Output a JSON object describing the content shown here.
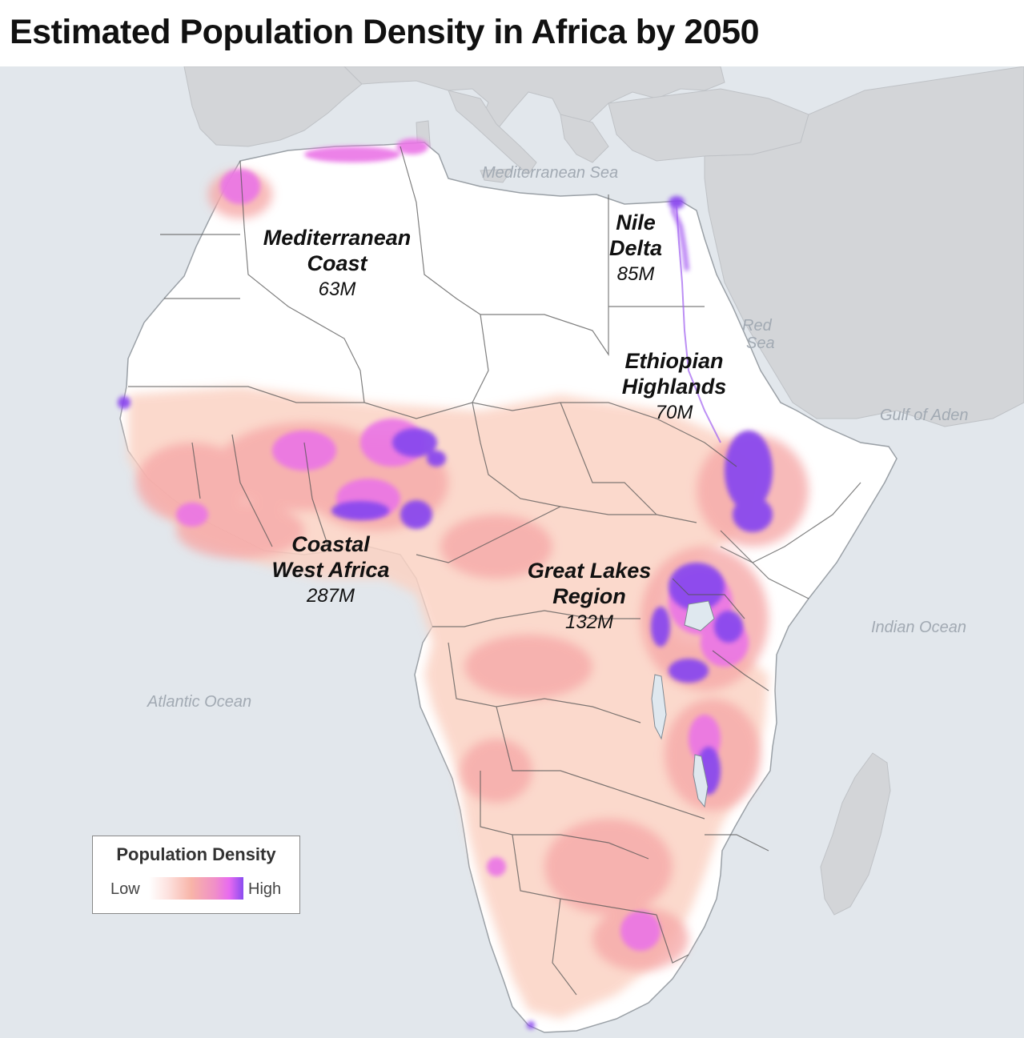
{
  "title": "Estimated Population Density in Africa by 2050",
  "water_labels": {
    "mediterranean_sea": "Mediterranean Sea",
    "red_sea_line1": "Red",
    "red_sea_line2": "Sea",
    "gulf_of_aden": "Gulf of Aden",
    "indian_ocean": "Indian Ocean",
    "atlantic_ocean": "Atlantic Ocean"
  },
  "regions": [
    {
      "name_line1": "Mediterranean",
      "name_line2": "Coast",
      "population": "63M"
    },
    {
      "name_line1": "Nile",
      "name_line2": "Delta",
      "population": "85M"
    },
    {
      "name_line1": "Ethiopian",
      "name_line2": "Highlands",
      "population": "70M"
    },
    {
      "name_line1": "Coastal",
      "name_line2": "West Africa",
      "population": "287M"
    },
    {
      "name_line1": "Great Lakes",
      "name_line2": "Region",
      "population": "132M"
    }
  ],
  "legend": {
    "title": "Population Density",
    "low_label": "Low",
    "high_label": "High",
    "ramp_colors": [
      "#ffffff",
      "#fde2df",
      "#f8b4a8",
      "#f08fc8",
      "#e86af0",
      "#8a4cf0"
    ]
  },
  "colors": {
    "water": "#e2e7ec",
    "foreign_land": "#d3d5d8",
    "africa_land": "#ffffff",
    "border": "#555555",
    "density_low": "#fbd3c4",
    "density_mid": "#f2a0a8",
    "density_high": "#e36ef0",
    "density_max": "#8a48ee"
  }
}
